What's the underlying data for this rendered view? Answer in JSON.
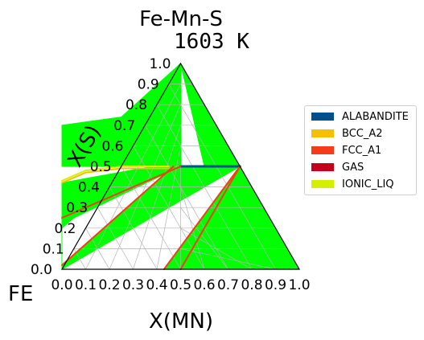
{
  "chart_data": {
    "type": "ternary-phase-diagram",
    "title": "Fe-Mn-S",
    "subtitle": "1603 K",
    "xlabel": "X(MN)",
    "ylabel": "X(S)",
    "corner_label": "FE",
    "x_ticks": [
      "0.0",
      "0.1",
      "0.2",
      "0.3",
      "0.4",
      "0.5",
      "0.6",
      "0.7",
      "0.8",
      "0.9",
      "1.0"
    ],
    "y_ticks": [
      "0.0",
      "0.1",
      "0.2",
      "0.3",
      "0.4",
      "0.5",
      "0.6",
      "0.7",
      "0.8",
      "0.9",
      "1.0"
    ],
    "xlim": [
      0,
      1
    ],
    "ylim": [
      0,
      1
    ],
    "grid": true,
    "legend_position": "right",
    "phases": [
      {
        "name": "ALABANDITE",
        "color": "#00508f"
      },
      {
        "name": "BCC_A2",
        "color": "#f2c100"
      },
      {
        "name": "FCC_A1",
        "color": "#f53c1a"
      },
      {
        "name": "GAS",
        "color": "#c4001c"
      },
      {
        "name": "IONIC_LIQ",
        "color": "#d4f000"
      }
    ],
    "region_color": "#00ff00",
    "regions": [
      {
        "points": [
          [
            0.5,
            0.5
          ],
          [
            0.0,
            0.5
          ],
          [
            0.0,
            0.7
          ],
          [
            0.25,
            0.74
          ],
          [
            0.5,
            1.0
          ]
        ]
      },
      {
        "points": [
          [
            0.5,
            1.0
          ],
          [
            0.6,
            0.5
          ],
          [
            0.75,
            0.5
          ]
        ]
      },
      {
        "points": [
          [
            0.0,
            0.0
          ],
          [
            0.0,
            0.42
          ],
          [
            0.38,
            0.5
          ],
          [
            0.5,
            0.5
          ],
          [
            0.05,
            0.25
          ],
          [
            0.0,
            0.2
          ]
        ]
      },
      {
        "points": [
          [
            0.0,
            0.0
          ],
          [
            0.0,
            0.02
          ],
          [
            0.47,
            0.5
          ],
          [
            0.75,
            0.5
          ]
        ]
      },
      {
        "points": [
          [
            0.43,
            0.0
          ],
          [
            0.75,
            0.5
          ],
          [
            0.5,
            0.0
          ]
        ]
      },
      {
        "points": [
          [
            0.5,
            0.0
          ],
          [
            0.75,
            0.5
          ],
          [
            1.0,
            0.0
          ]
        ]
      }
    ],
    "phase_boundaries": [
      {
        "phase": "ALABANDITE",
        "points": [
          [
            0.5,
            0.5
          ],
          [
            0.75,
            0.5
          ]
        ]
      },
      {
        "phase": "IONIC_LIQ",
        "points": [
          [
            0.0,
            0.43
          ],
          [
            0.1,
            0.48
          ],
          [
            0.25,
            0.5
          ],
          [
            0.45,
            0.5
          ]
        ]
      },
      {
        "phase": "BCC_A2",
        "points": [
          [
            0.0,
            0.42
          ],
          [
            0.1,
            0.47
          ],
          [
            0.25,
            0.49
          ],
          [
            0.45,
            0.49
          ]
        ]
      },
      {
        "phase": "FCC_A1",
        "points": [
          [
            0.0,
            0.02
          ],
          [
            0.47,
            0.5
          ]
        ]
      },
      {
        "phase": "FCC_A1",
        "points": [
          [
            0.0,
            0.25
          ],
          [
            0.5,
            0.5
          ]
        ]
      },
      {
        "phase": "FCC_A1",
        "points": [
          [
            0.43,
            0.0
          ],
          [
            0.75,
            0.5
          ]
        ]
      },
      {
        "phase": "FCC_A1",
        "points": [
          [
            0.5,
            0.0
          ],
          [
            0.75,
            0.5
          ]
        ]
      }
    ]
  }
}
